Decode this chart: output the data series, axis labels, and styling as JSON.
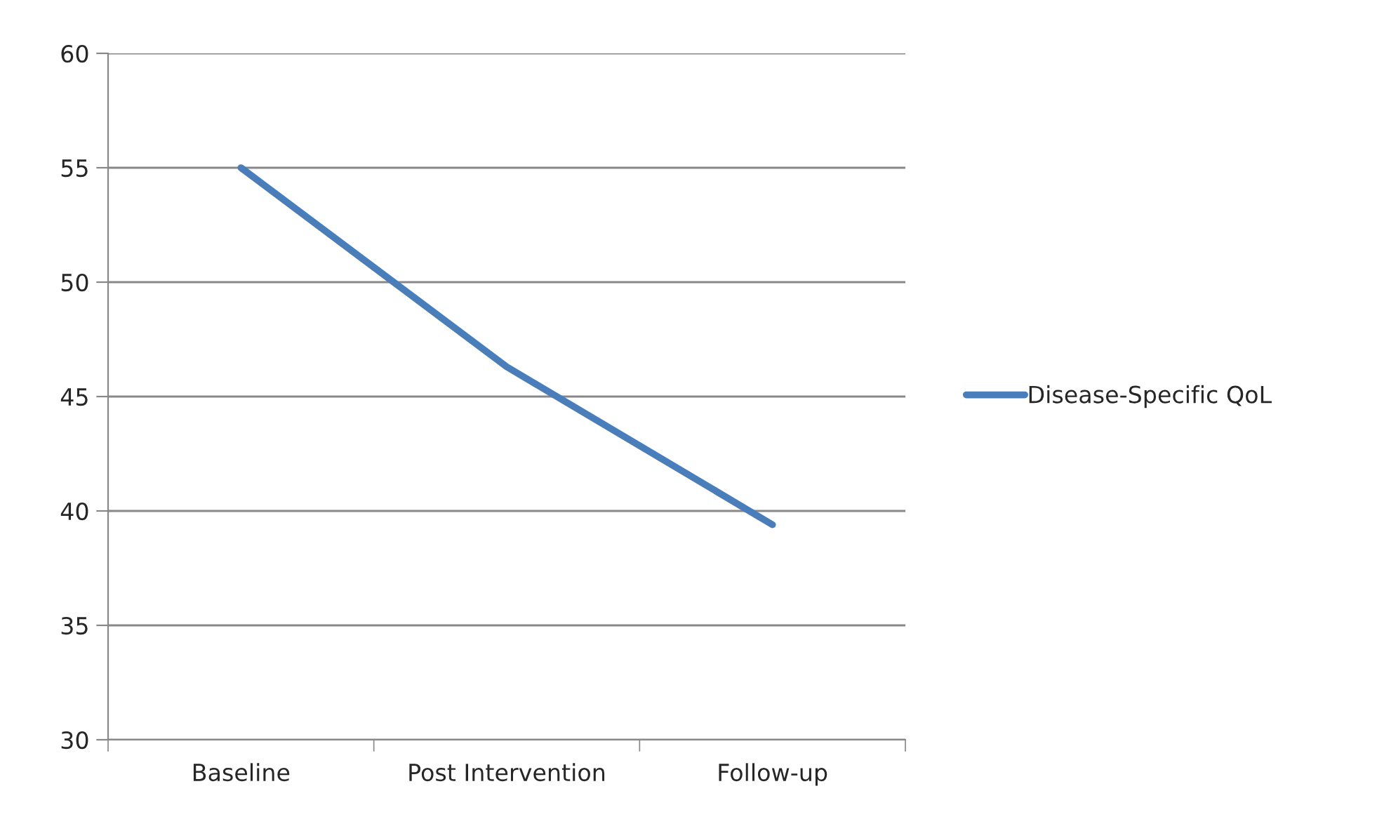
{
  "chart_data": {
    "type": "line",
    "categories": [
      "Baseline",
      "Post Intervention",
      "Follow-up"
    ],
    "series": [
      {
        "name": "Disease-Specific QoL",
        "color": "#4a7ebb",
        "values": [
          55,
          46.3,
          39.4
        ]
      }
    ],
    "ylim": [
      30,
      60
    ],
    "yticks": [
      30,
      35,
      40,
      45,
      50,
      55,
      60
    ],
    "grid": "y",
    "legend": "right",
    "marker": "none",
    "line_style": "solid"
  }
}
